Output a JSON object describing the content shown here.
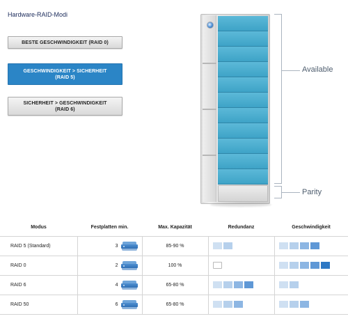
{
  "heading": "Hardware-RAID-Modi",
  "modes": [
    {
      "label_line1": "BESTE GESCHWINDIGKEIT (RAID 0)",
      "label_line2": "",
      "active": false
    },
    {
      "label_line1": "GESCHWINDIGKEIT > SICHERHEIT",
      "label_line2": "(RAID 5)",
      "active": true
    },
    {
      "label_line1": "SICHERHEIT > GESCHWINDIGKEIT",
      "label_line2": "(RAID 6)",
      "active": false
    }
  ],
  "device": {
    "available_label": "Available",
    "parity_label": "Parity",
    "data_drive_color": "#4ab0d2",
    "parity_drive_color": "#e0e0e0"
  },
  "table": {
    "headers": {
      "mode": "Modus",
      "disks": "Festplatten min.",
      "capacity": "Max. Kapazität",
      "redundancy": "Redundanz",
      "speed": "Geschwindigkeit"
    },
    "rows": [
      {
        "mode": "RAID 5 (Standard)",
        "disks": "3",
        "capacity": "85-90 %",
        "redundancy_level": 2,
        "speed_level": 4
      },
      {
        "mode": "RAID 0",
        "disks": "2",
        "capacity": "100 %",
        "redundancy_level": 0,
        "speed_level": 5
      },
      {
        "mode": "RAID 6",
        "disks": "4",
        "capacity": "65-80 %",
        "redundancy_level": 4,
        "speed_level": 2
      },
      {
        "mode": "RAID 50",
        "disks": "6",
        "capacity": "65-80 %",
        "redundancy_level": 3,
        "speed_level": 3
      }
    ],
    "block_colors": [
      "#cfe0f2",
      "#b6d0ec",
      "#8db6e3",
      "#5f98d6",
      "#2d78c4"
    ]
  }
}
